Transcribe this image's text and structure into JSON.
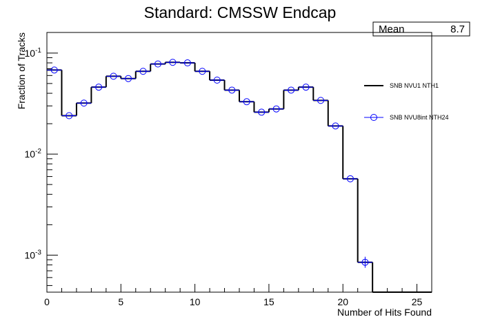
{
  "chart_data": {
    "type": "histogram",
    "title": "Standard: CMSSW Endcap",
    "xlabel": "Number of Hits Found",
    "ylabel": "Fraction of Tracks",
    "xlim": [
      0,
      26
    ],
    "ylim": [
      0.00043,
      0.16
    ],
    "yscale": "log",
    "grid": false,
    "legend_position": "right",
    "x_ticks": [
      0,
      5,
      10,
      15,
      20,
      25
    ],
    "y_ticks": [
      {
        "value": 0.1,
        "base": "10",
        "exp": "-1"
      },
      {
        "value": 0.01,
        "base": "10",
        "exp": "-2"
      },
      {
        "value": 0.001,
        "base": "10",
        "exp": "-3"
      }
    ],
    "stats": {
      "label": "Mean",
      "value": "8.7"
    },
    "bin_edges": [
      0,
      1,
      2,
      3,
      4,
      5,
      6,
      7,
      8,
      9,
      10,
      11,
      12,
      13,
      14,
      15,
      16,
      17,
      18,
      19,
      20,
      21,
      22,
      23,
      24,
      25,
      26
    ],
    "series": [
      {
        "name": "SNB NVU1 NTH1",
        "style": "step",
        "color": "#000000",
        "values": [
          0.068,
          0.024,
          0.032,
          0.046,
          0.059,
          0.056,
          0.066,
          0.078,
          0.081,
          0.08,
          0.066,
          0.054,
          0.043,
          0.033,
          0.026,
          0.028,
          0.043,
          0.046,
          0.034,
          0.019,
          0.0057,
          0.00085,
          0.0004,
          0.0004,
          0.0004,
          0.0004
        ]
      },
      {
        "name": "SNB NVU8int NTH24",
        "style": "marker",
        "color": "#0000ff",
        "values": [
          0.068,
          0.024,
          0.032,
          0.046,
          0.059,
          0.056,
          0.066,
          0.078,
          0.081,
          0.08,
          0.066,
          0.054,
          0.043,
          0.033,
          0.026,
          0.028,
          0.043,
          0.046,
          0.034,
          0.019,
          0.0057,
          0.00085,
          null,
          null,
          null,
          null
        ]
      }
    ]
  }
}
